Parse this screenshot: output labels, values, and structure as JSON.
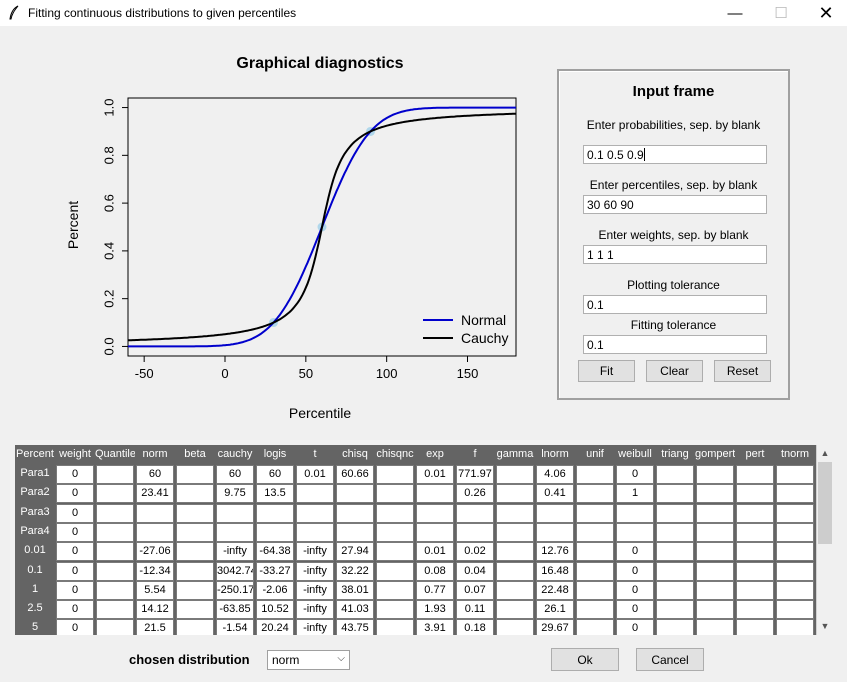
{
  "window": {
    "title": "Fitting continuous distributions to given percentiles",
    "minimize": "—",
    "maximize": "☐",
    "close": "✕"
  },
  "plot": {
    "title": "Graphical diagnostics",
    "xlabel": "Percentile",
    "ylabel": "Percent",
    "legend": [
      "Normal",
      "Cauchy"
    ]
  },
  "chart_data": {
    "type": "line",
    "title": "Graphical diagnostics",
    "xlabel": "Percentile",
    "ylabel": "Percent",
    "xlim": [
      -60,
      180
    ],
    "ylim": [
      0,
      1
    ],
    "x_ticks": [
      -50,
      0,
      50,
      100,
      150
    ],
    "y_ticks": [
      "0.0",
      "0.2",
      "0.4",
      "0.6",
      "0.8",
      "1.0"
    ],
    "legend_position": "bottom-right",
    "series": [
      {
        "name": "Normal",
        "color": "#0000cc",
        "distribution": "normal",
        "mean": 60,
        "sd": 23.41
      },
      {
        "name": "Cauchy",
        "color": "#000000",
        "distribution": "cauchy",
        "location": 60,
        "scale": 9.75
      }
    ],
    "points": [
      {
        "x": 30,
        "y": 0.1
      },
      {
        "x": 60,
        "y": 0.5
      },
      {
        "x": 90,
        "y": 0.9
      }
    ],
    "point_color": "#a8d4ea"
  },
  "input_frame": {
    "title": "Input frame",
    "prob_label": "Enter probabilities, sep. by blank",
    "prob_value": "0.1 0.5 0.9",
    "perc_label": "Enter percentiles, sep. by blank",
    "perc_value": "30 60 90",
    "weights_label": "Enter weights, sep. by blank",
    "weights_value": "1 1 1",
    "plot_tol_label": "Plotting tolerance",
    "plot_tol_value": "0.1",
    "fit_tol_label": "Fitting tolerance",
    "fit_tol_value": "0.1",
    "fit_button": "Fit",
    "clear_button": "Clear",
    "reset_button": "Reset"
  },
  "table": {
    "headers": [
      "Percent",
      "weight",
      "Quantile",
      "norm",
      "beta",
      "cauchy",
      "logis",
      "t",
      "chisq",
      "chisqnc",
      "exp",
      "f",
      "gamma",
      "lnorm",
      "unif",
      "weibull",
      "triang",
      "gompert",
      "pert",
      "tnorm"
    ],
    "rows": [
      {
        "label": "Para1",
        "cells": [
          "0",
          "",
          "60",
          "",
          "60",
          "60",
          "0.01",
          "60.66",
          "",
          "0.01",
          "771.97",
          "",
          "4.06",
          "",
          "0",
          "",
          "",
          "",
          ""
        ]
      },
      {
        "label": "Para2",
        "cells": [
          "0",
          "",
          "23.41",
          "",
          "9.75",
          "13.5",
          "",
          "",
          "",
          "",
          "0.26",
          "",
          "0.41",
          "",
          "1",
          "",
          "",
          "",
          ""
        ]
      },
      {
        "label": "Para3",
        "cells": [
          "0",
          "",
          "",
          "",
          "",
          "",
          "",
          "",
          "",
          "",
          "",
          "",
          "",
          "",
          "",
          "",
          "",
          "",
          ""
        ]
      },
      {
        "label": "Para4",
        "cells": [
          "0",
          "",
          "",
          "",
          "",
          "",
          "",
          "",
          "",
          "",
          "",
          "",
          "",
          "",
          "",
          "",
          "",
          "",
          ""
        ]
      },
      {
        "label": "0.01",
        "cells": [
          "0",
          "",
          "-27.06",
          "",
          "-infty",
          "-64.38",
          "-infty",
          "27.94",
          "",
          "0.01",
          "0.02",
          "",
          "12.76",
          "",
          "0",
          "",
          "",
          "",
          ""
        ]
      },
      {
        "label": "0.1",
        "cells": [
          "0",
          "",
          "-12.34",
          "",
          "3042.74",
          "-33.27",
          "-infty",
          "32.22",
          "",
          "0.08",
          "0.04",
          "",
          "16.48",
          "",
          "0",
          "",
          "",
          "",
          ""
        ]
      },
      {
        "label": "1",
        "cells": [
          "0",
          "",
          "5.54",
          "",
          "-250.17",
          "-2.06",
          "-infty",
          "38.01",
          "",
          "0.77",
          "0.07",
          "",
          "22.48",
          "",
          "0",
          "",
          "",
          "",
          ""
        ]
      },
      {
        "label": "2.5",
        "cells": [
          "0",
          "",
          "14.12",
          "",
          "-63.85",
          "10.52",
          "-infty",
          "41.03",
          "",
          "1.93",
          "0.11",
          "",
          "26.1",
          "",
          "0",
          "",
          "",
          "",
          ""
        ]
      },
      {
        "label": "5",
        "cells": [
          "0",
          "",
          "21.5",
          "",
          "-1.54",
          "20.24",
          "-infty",
          "43.75",
          "",
          "3.91",
          "0.18",
          "",
          "29.67",
          "",
          "0",
          "",
          "",
          "",
          ""
        ]
      }
    ]
  },
  "footer": {
    "chosen_label": "chosen distribution",
    "chosen_value": "norm",
    "ok_button": "Ok",
    "cancel_button": "Cancel"
  }
}
